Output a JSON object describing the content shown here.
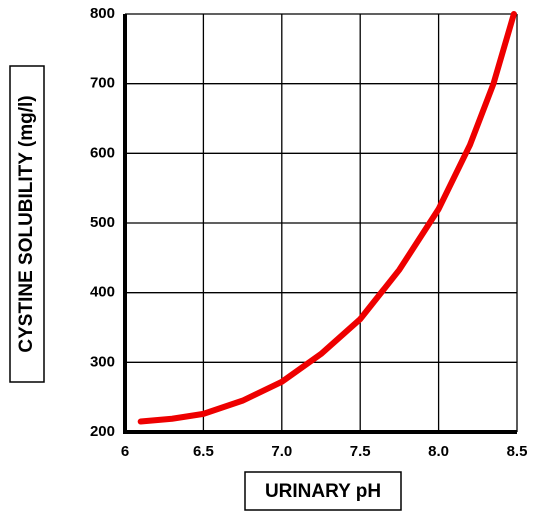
{
  "chart_data": {
    "type": "line",
    "x_label": "URINARY pH",
    "y_label": "CYSTINE SOLUBILITY (mg/l)",
    "x": [
      6.1,
      6.3,
      6.5,
      6.75,
      7.0,
      7.25,
      7.5,
      7.75,
      8.0,
      8.2,
      8.35,
      8.48
    ],
    "series": [
      {
        "name": "Cystine solubility",
        "color": "#ee0000",
        "values": [
          215,
          219,
          226,
          245,
          272,
          312,
          362,
          433,
          520,
          612,
          700,
          800
        ]
      }
    ],
    "xlim": [
      6,
      8.5
    ],
    "xticks": [
      6,
      6.5,
      {
        "value": 7,
        "label": "7.0"
      },
      7.5,
      {
        "value": 8,
        "label": "8.0"
      },
      8.5
    ],
    "ylim": [
      200,
      800
    ],
    "yticks": [
      200,
      300,
      400,
      500,
      600,
      700,
      800
    ],
    "grid": true
  }
}
